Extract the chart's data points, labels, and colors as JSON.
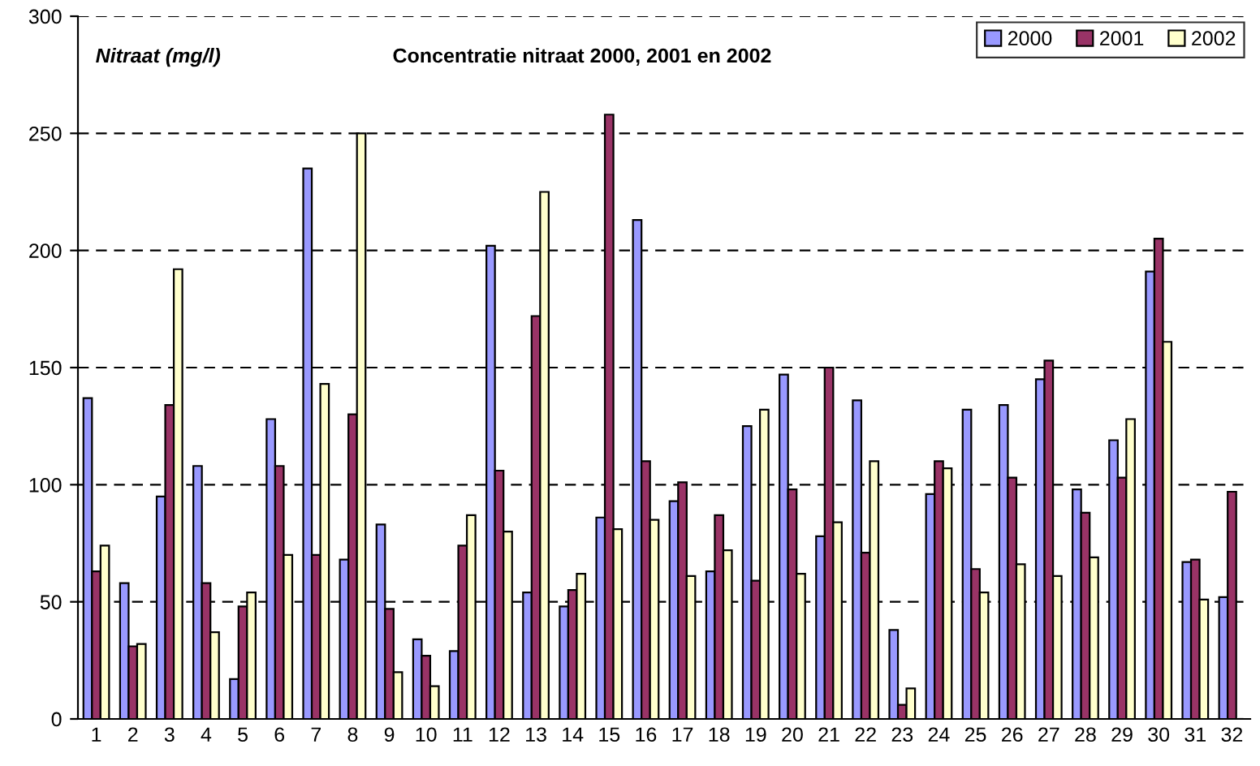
{
  "chart_data": {
    "type": "bar",
    "title": "Concentratie nitraat 2000, 2001 en 2002",
    "ylabel": "Nitraat (mg/l)",
    "categories": [
      "1",
      "2",
      "3",
      "4",
      "5",
      "6",
      "7",
      "8",
      "9",
      "10",
      "11",
      "12",
      "13",
      "14",
      "15",
      "16",
      "17",
      "18",
      "19",
      "20",
      "21",
      "22",
      "23",
      "24",
      "25",
      "26",
      "27",
      "28",
      "29",
      "30",
      "31",
      "32"
    ],
    "series": [
      {
        "name": "2000",
        "color": "#9999ff",
        "values": [
          137,
          58,
          95,
          108,
          17,
          128,
          235,
          68,
          83,
          34,
          29,
          202,
          54,
          48,
          86,
          213,
          93,
          63,
          125,
          147,
          78,
          136,
          38,
          96,
          132,
          134,
          145,
          98,
          119,
          191,
          67,
          52
        ]
      },
      {
        "name": "2001",
        "color": "#993366",
        "values": [
          63,
          31,
          134,
          58,
          48,
          108,
          70,
          130,
          47,
          27,
          74,
          106,
          172,
          55,
          258,
          110,
          101,
          87,
          59,
          98,
          150,
          71,
          6,
          110,
          64,
          103,
          153,
          88,
          103,
          205,
          68,
          97
        ]
      },
      {
        "name": "2002",
        "color": "#ffffcc",
        "values": [
          74,
          32,
          192,
          37,
          54,
          70,
          143,
          250,
          20,
          14,
          87,
          80,
          225,
          62,
          81,
          85,
          61,
          72,
          132,
          62,
          84,
          110,
          13,
          107,
          54,
          66,
          61,
          69,
          128,
          161,
          51,
          null
        ]
      }
    ],
    "ylim": [
      0,
      300
    ],
    "yticks": [
      0,
      50,
      100,
      150,
      200,
      250,
      300
    ],
    "grid": "y",
    "legend": "top right"
  }
}
